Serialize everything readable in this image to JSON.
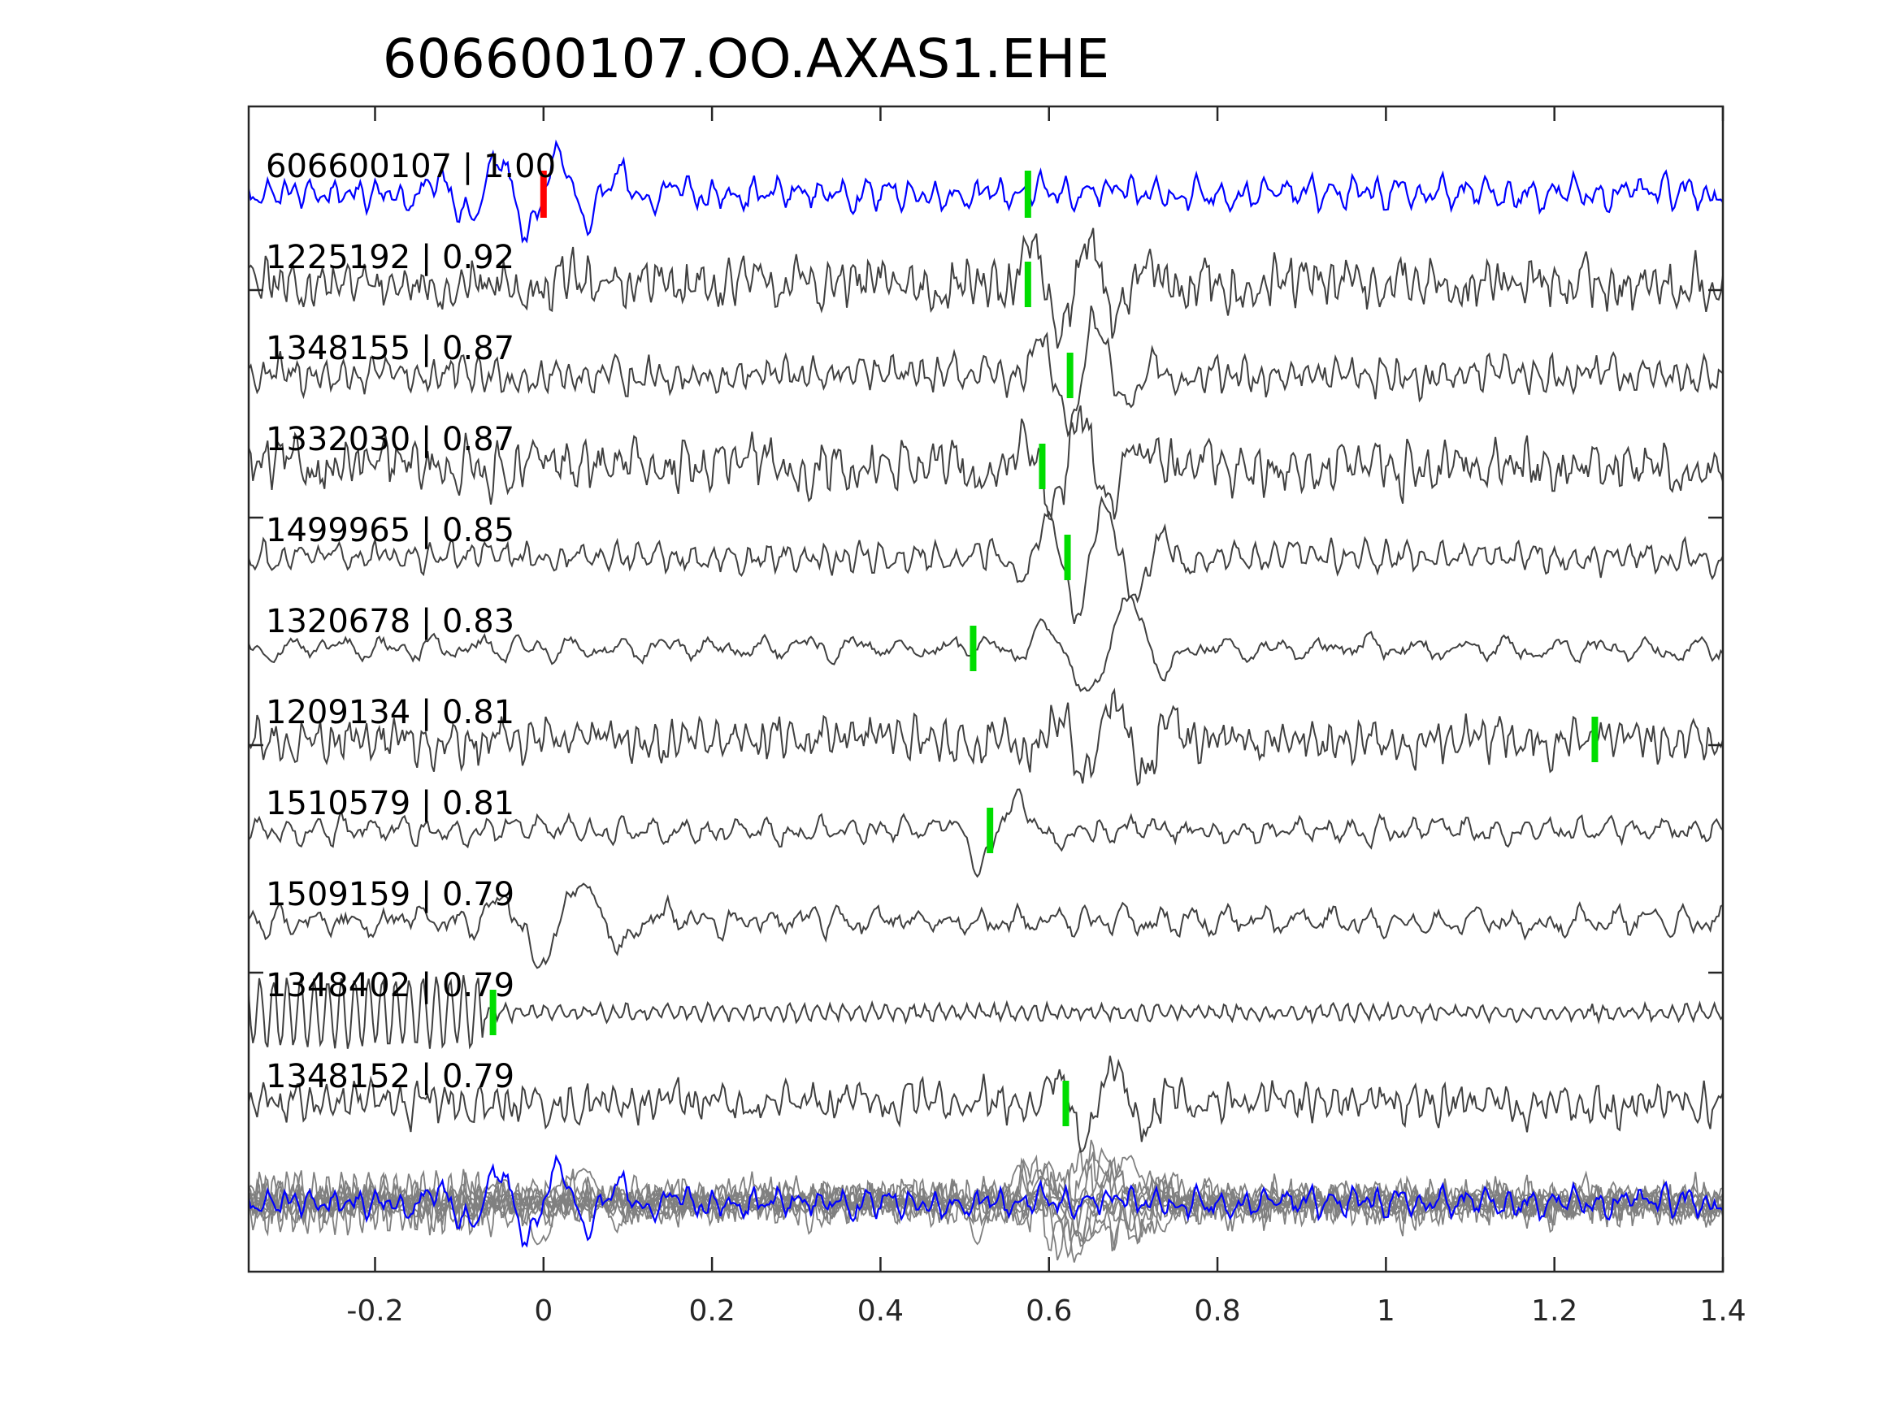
{
  "chart_data": {
    "type": "line",
    "title": "606600107.OO.AXAS1.EHE",
    "xlabel": "",
    "ylabel": "",
    "xlim": [
      -0.35,
      1.4
    ],
    "x_ticks": [
      -0.2,
      0,
      0.2,
      0.4,
      0.6,
      0.8,
      1,
      1.2,
      1.4
    ],
    "x_tick_labels": [
      "-0.2",
      "0",
      "0.2",
      "0.4",
      "0.6",
      "0.8",
      "1",
      "1.2",
      "1.4"
    ],
    "grid": false,
    "legend": "none",
    "colors": {
      "template": "#0000ff",
      "match": "#404040",
      "stack": "#808080",
      "template_pick": "#ff0000",
      "match_pick": "#00dd00",
      "axes": "#262626"
    },
    "traces": [
      {
        "label": "606600107 | 1.00",
        "id": "606600107",
        "cc": 1.0,
        "pick": 0.0,
        "template_pick": 0.0,
        "template_s_pick": 0.575,
        "role": "template"
      },
      {
        "label": "1225192 | 0.92",
        "id": "1225192",
        "cc": 0.92,
        "pick": 0.575,
        "role": "match"
      },
      {
        "label": "1348155 | 0.87",
        "id": "1348155",
        "cc": 0.87,
        "pick": 0.625,
        "role": "match"
      },
      {
        "label": "1332030 | 0.87",
        "id": "1332030",
        "cc": 0.87,
        "pick": 0.592,
        "role": "match"
      },
      {
        "label": "1499965 | 0.85",
        "id": "1499965",
        "cc": 0.85,
        "pick": 0.622,
        "role": "match"
      },
      {
        "label": "1320678 | 0.83",
        "id": "1320678",
        "cc": 0.83,
        "pick": 0.51,
        "role": "match"
      },
      {
        "label": "1209134 | 0.81",
        "id": "1209134",
        "cc": 0.81,
        "pick": 1.248,
        "role": "match"
      },
      {
        "label": "1510579 | 0.81",
        "id": "1510579",
        "cc": 0.81,
        "pick": 0.53,
        "role": "match"
      },
      {
        "label": "1509159 | 0.79",
        "id": "1509159",
        "cc": 0.79,
        "role": "match"
      },
      {
        "label": "1348402 | 0.79",
        "id": "1348402",
        "cc": 0.79,
        "pick": -0.06,
        "role": "match"
      },
      {
        "label": "1348152 | 0.79",
        "id": "1348152",
        "cc": 0.79,
        "pick": 0.62,
        "role": "match"
      }
    ]
  }
}
